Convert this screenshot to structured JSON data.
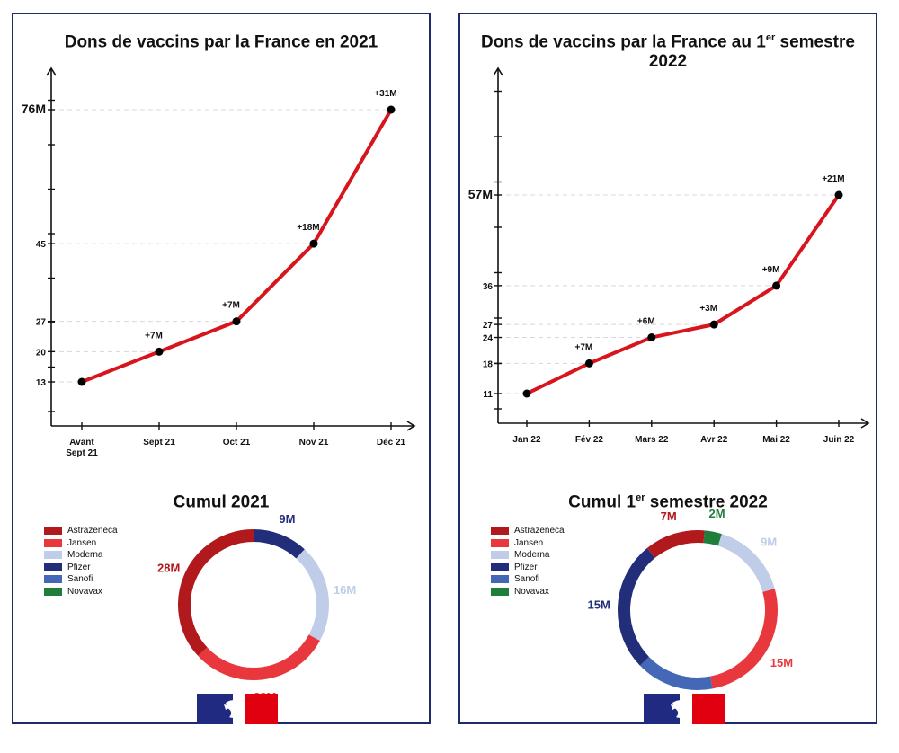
{
  "panels": [
    {
      "title": "Dons de vaccins par la France en 2021",
      "title_sup": "",
      "title_tail": "",
      "cumul_title": "Cumul 2021",
      "cumul_sup": "",
      "cumul_tail": ""
    },
    {
      "title": "Dons de vaccins par la France au 1",
      "title_sup": "er",
      "title_tail": " semestre 2022",
      "cumul_title": "Cumul 1",
      "cumul_sup": "er",
      "cumul_tail": " semestre 2022"
    }
  ],
  "legend": [
    "Astrazeneca",
    "Jansen",
    "Moderna",
    "Pfizer",
    "Sanofi",
    "Novavax"
  ],
  "colors": {
    "line": "#d8141c",
    "Astrazeneca": "#b1191c",
    "Jansen": "#e8383d",
    "Moderna": "#c0cde8",
    "Pfizer": "#232e7a",
    "Sanofi": "#4468b5",
    "Novavax": "#1e7e3a",
    "border": "#1f2a6b"
  },
  "chart_data": [
    {
      "type": "line",
      "title": "Dons de vaccins par la France en 2021",
      "categories": [
        "Avant Sept 21",
        "Sept 21",
        "Oct 21",
        "Nov 21",
        "Déc 21"
      ],
      "values": [
        13,
        20,
        27,
        45,
        76
      ],
      "data_labels": [
        "",
        "+7M",
        "+7M",
        "+18M",
        "+31M"
      ],
      "y_tick_labels": [
        "13",
        "20",
        "27",
        "45",
        "76M"
      ],
      "ylim": [
        7,
        83
      ]
    },
    {
      "type": "line",
      "title": "Dons de vaccins par la France au 1er semestre 2022",
      "categories": [
        "Jan 22",
        "Fév 22",
        "Mars 22",
        "Avr 22",
        "Mai 22",
        "Juin 22"
      ],
      "values": [
        11,
        18,
        24,
        27,
        36,
        57
      ],
      "data_labels": [
        "",
        "+7M",
        "+6M",
        "+3M",
        "+9M",
        "+21M"
      ],
      "y_tick_labels": [
        "11",
        "18",
        "24",
        "27",
        "36",
        "57M"
      ],
      "ylim": [
        3,
        80
      ]
    },
    {
      "type": "pie",
      "title": "Cumul 2021",
      "categories": [
        "Pfizer",
        "Moderna",
        "Jansen",
        "Astrazeneca"
      ],
      "values": [
        9,
        16,
        23,
        28
      ],
      "data_labels": [
        "9M",
        "16M",
        "23M",
        "28M"
      ]
    },
    {
      "type": "pie",
      "title": "Cumul 1er semestre 2022",
      "categories": [
        "Novavax",
        "Moderna",
        "Jansen",
        "Sanofi",
        "Pfizer",
        "Astrazeneca"
      ],
      "values": [
        2,
        9,
        15,
        9,
        15,
        7
      ],
      "data_labels": [
        "2M",
        "9M",
        "15M",
        "9M",
        "15M",
        "7M"
      ]
    }
  ]
}
